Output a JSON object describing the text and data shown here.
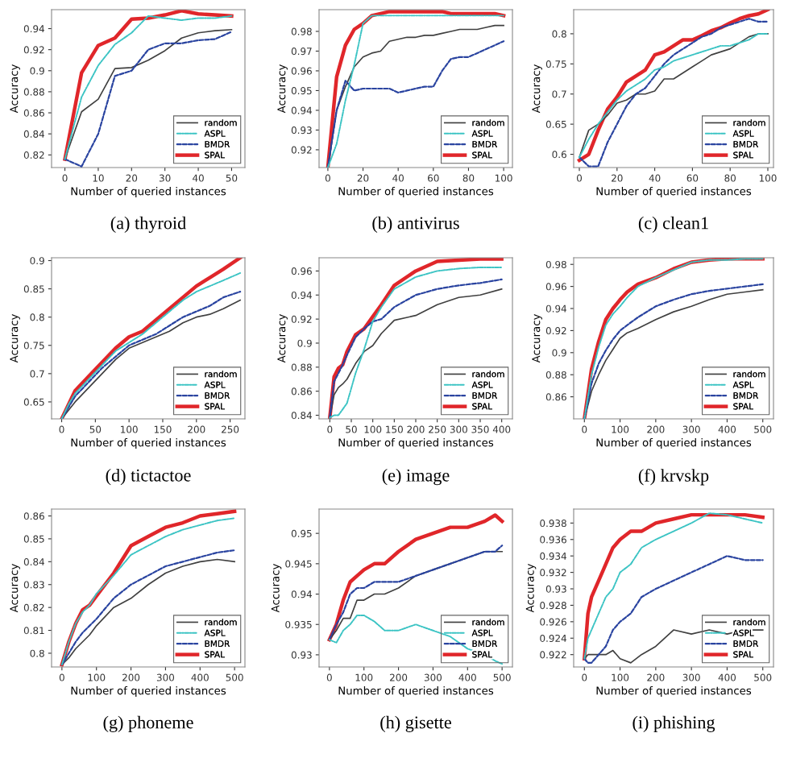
{
  "chart_data": [
    {
      "type": "line",
      "title": "(a) thyroid",
      "xlabel": "Number of queried instances",
      "ylabel": "Accuracy",
      "xlim": [
        -4,
        54
      ],
      "xticks": [
        0,
        10,
        20,
        30,
        40,
        50
      ],
      "ylim": [
        0.808,
        0.958
      ],
      "yticks": [
        0.82,
        0.84,
        0.86,
        0.88,
        0.9,
        0.92,
        0.94
      ],
      "legend": "bottom right",
      "series": [
        {
          "name": "random",
          "color": "#404040",
          "line_style": "solid",
          "x": [
            0,
            5,
            10,
            15,
            20,
            25,
            30,
            35,
            40,
            45,
            50
          ],
          "values": [
            0.816,
            0.861,
            0.873,
            0.902,
            0.903,
            0.91,
            0.919,
            0.931,
            0.936,
            0.938,
            0.939
          ]
        },
        {
          "name": "ASPL",
          "color": "#3cc4c4",
          "line_style": "dashdot",
          "x": [
            0,
            5,
            10,
            15,
            20,
            25,
            30,
            35,
            40,
            45,
            50
          ],
          "values": [
            0.816,
            0.875,
            0.905,
            0.925,
            0.936,
            0.952,
            0.95,
            0.948,
            0.95,
            0.95,
            0.952
          ]
        },
        {
          "name": "BMDR",
          "color": "#2a44a0",
          "line_style": "dashed",
          "x": [
            0,
            5,
            10,
            15,
            20,
            25,
            30,
            35,
            40,
            45,
            50
          ],
          "values": [
            0.816,
            0.809,
            0.84,
            0.895,
            0.9,
            0.92,
            0.926,
            0.926,
            0.929,
            0.93,
            0.937
          ]
        },
        {
          "name": "SPAL",
          "color": "#e0262a",
          "line_style": "solid",
          "x": [
            0,
            5,
            10,
            15,
            20,
            25,
            30,
            35,
            40,
            45,
            50
          ],
          "values": [
            0.816,
            0.898,
            0.924,
            0.931,
            0.949,
            0.95,
            0.953,
            0.957,
            0.954,
            0.953,
            0.952
          ]
        }
      ]
    },
    {
      "type": "line",
      "title": "(b) antivirus",
      "xlabel": "Number of queried instances",
      "ylabel": "Accuracy",
      "xlim": [
        -5,
        105
      ],
      "xticks": [
        0,
        20,
        40,
        60,
        80,
        100
      ],
      "ylim": [
        0.911,
        0.991
      ],
      "yticks": [
        0.92,
        0.93,
        0.94,
        0.95,
        0.96,
        0.97,
        0.98
      ],
      "legend": "bottom right",
      "series": [
        {
          "name": "random",
          "color": "#404040",
          "line_style": "solid",
          "x": [
            0,
            5,
            10,
            15,
            20,
            25,
            30,
            35,
            40,
            45,
            50,
            55,
            60,
            65,
            70,
            75,
            80,
            85,
            90,
            95,
            100
          ],
          "values": [
            0.911,
            0.94,
            0.952,
            0.962,
            0.967,
            0.969,
            0.97,
            0.975,
            0.976,
            0.977,
            0.977,
            0.978,
            0.978,
            0.979,
            0.98,
            0.981,
            0.981,
            0.981,
            0.982,
            0.983,
            0.983
          ]
        },
        {
          "name": "ASPL",
          "color": "#3cc4c4",
          "line_style": "dashdot",
          "x": [
            0,
            5,
            10,
            15,
            20,
            25,
            30,
            35,
            40,
            45,
            50,
            55,
            60,
            65,
            70,
            75,
            80,
            85,
            90,
            95,
            100
          ],
          "values": [
            0.911,
            0.923,
            0.945,
            0.963,
            0.984,
            0.988,
            0.988,
            0.988,
            0.988,
            0.988,
            0.988,
            0.988,
            0.988,
            0.988,
            0.988,
            0.988,
            0.988,
            0.988,
            0.988,
            0.988,
            0.988
          ]
        },
        {
          "name": "BMDR",
          "color": "#2a44a0",
          "line_style": "dashed",
          "x": [
            0,
            5,
            10,
            15,
            20,
            25,
            30,
            35,
            40,
            45,
            50,
            55,
            60,
            65,
            70,
            75,
            80,
            85,
            90,
            95,
            100
          ],
          "values": [
            0.911,
            0.94,
            0.955,
            0.95,
            0.951,
            0.951,
            0.951,
            0.951,
            0.949,
            0.95,
            0.951,
            0.952,
            0.952,
            0.96,
            0.966,
            0.967,
            0.967,
            0.969,
            0.971,
            0.973,
            0.975
          ]
        },
        {
          "name": "SPAL",
          "color": "#e0262a",
          "line_style": "solid",
          "x": [
            0,
            5,
            10,
            15,
            20,
            25,
            30,
            35,
            40,
            45,
            50,
            55,
            60,
            65,
            70,
            75,
            80,
            85,
            90,
            95,
            100
          ],
          "values": [
            0.911,
            0.957,
            0.973,
            0.981,
            0.984,
            0.988,
            0.989,
            0.99,
            0.99,
            0.99,
            0.99,
            0.99,
            0.99,
            0.99,
            0.989,
            0.989,
            0.989,
            0.989,
            0.989,
            0.989,
            0.988
          ]
        }
      ]
    },
    {
      "type": "line",
      "title": "(c) clean1",
      "xlabel": "Number of queried instances",
      "ylabel": "Accuracy",
      "xlim": [
        -3,
        103
      ],
      "xticks": [
        0,
        20,
        40,
        60,
        80,
        100
      ],
      "ylim": [
        0.578,
        0.84
      ],
      "yticks": [
        0.6,
        0.65,
        0.7,
        0.75,
        0.8
      ],
      "legend": "bottom right",
      "series": [
        {
          "name": "random",
          "color": "#404040",
          "line_style": "solid",
          "x": [
            0,
            5,
            10,
            15,
            20,
            25,
            30,
            35,
            40,
            45,
            50,
            55,
            60,
            65,
            70,
            75,
            80,
            85,
            90,
            95,
            100
          ],
          "values": [
            0.595,
            0.64,
            0.65,
            0.665,
            0.685,
            0.69,
            0.7,
            0.7,
            0.705,
            0.725,
            0.725,
            0.735,
            0.745,
            0.755,
            0.765,
            0.77,
            0.775,
            0.785,
            0.795,
            0.8,
            0.8
          ]
        },
        {
          "name": "ASPL",
          "color": "#3cc4c4",
          "line_style": "dashdot",
          "x": [
            0,
            5,
            10,
            15,
            20,
            25,
            30,
            35,
            40,
            45,
            50,
            55,
            60,
            65,
            70,
            75,
            80,
            85,
            90,
            95,
            100
          ],
          "values": [
            0.595,
            0.625,
            0.65,
            0.67,
            0.69,
            0.705,
            0.715,
            0.725,
            0.74,
            0.745,
            0.755,
            0.76,
            0.765,
            0.77,
            0.775,
            0.78,
            0.78,
            0.785,
            0.79,
            0.8,
            0.8
          ]
        },
        {
          "name": "BMDR",
          "color": "#2a44a0",
          "line_style": "dashed",
          "x": [
            0,
            5,
            10,
            15,
            20,
            25,
            30,
            35,
            40,
            45,
            50,
            55,
            60,
            65,
            70,
            75,
            80,
            85,
            90,
            95,
            100
          ],
          "values": [
            0.595,
            0.58,
            0.58,
            0.62,
            0.65,
            0.68,
            0.7,
            0.71,
            0.73,
            0.75,
            0.765,
            0.775,
            0.785,
            0.795,
            0.8,
            0.81,
            0.815,
            0.82,
            0.825,
            0.82,
            0.82
          ]
        },
        {
          "name": "SPAL",
          "color": "#e0262a",
          "line_style": "solid",
          "x": [
            0,
            5,
            10,
            15,
            20,
            25,
            30,
            35,
            40,
            45,
            50,
            55,
            60,
            65,
            70,
            75,
            80,
            85,
            90,
            95,
            100
          ],
          "values": [
            0.59,
            0.6,
            0.64,
            0.675,
            0.695,
            0.72,
            0.73,
            0.74,
            0.765,
            0.77,
            0.78,
            0.79,
            0.79,
            0.797,
            0.805,
            0.81,
            0.818,
            0.825,
            0.83,
            0.833,
            0.84
          ]
        }
      ]
    },
    {
      "type": "line",
      "title": "(d) tictactoe",
      "xlabel": "Number of queried instances",
      "ylabel": "Accuracy",
      "xlim": [
        -15,
        272
      ],
      "xticks": [
        0,
        50,
        100,
        150,
        200,
        250
      ],
      "ylim": [
        0.62,
        0.905
      ],
      "yticks": [
        0.65,
        0.7,
        0.75,
        0.8,
        0.85,
        0.9
      ],
      "legend": "bottom right",
      "series": [
        {
          "name": "random",
          "color": "#404040",
          "line_style": "solid",
          "x": [
            0,
            10,
            20,
            40,
            60,
            80,
            100,
            120,
            140,
            160,
            180,
            200,
            220,
            240,
            265
          ],
          "values": [
            0.62,
            0.635,
            0.65,
            0.675,
            0.7,
            0.725,
            0.745,
            0.755,
            0.765,
            0.775,
            0.79,
            0.8,
            0.805,
            0.815,
            0.83
          ]
        },
        {
          "name": "ASPL",
          "color": "#3cc4c4",
          "line_style": "dashdot",
          "x": [
            0,
            10,
            20,
            40,
            60,
            80,
            100,
            120,
            140,
            160,
            180,
            200,
            220,
            240,
            265
          ],
          "values": [
            0.62,
            0.645,
            0.665,
            0.69,
            0.715,
            0.74,
            0.755,
            0.77,
            0.79,
            0.81,
            0.83,
            0.845,
            0.855,
            0.865,
            0.878
          ]
        },
        {
          "name": "BMDR",
          "color": "#2a44a0",
          "line_style": "dashed",
          "x": [
            0,
            10,
            20,
            40,
            60,
            80,
            100,
            120,
            140,
            160,
            180,
            200,
            220,
            240,
            265
          ],
          "values": [
            0.62,
            0.64,
            0.66,
            0.685,
            0.71,
            0.73,
            0.75,
            0.76,
            0.77,
            0.785,
            0.8,
            0.81,
            0.82,
            0.835,
            0.845
          ]
        },
        {
          "name": "SPAL",
          "color": "#e0262a",
          "line_style": "solid",
          "x": [
            0,
            10,
            20,
            40,
            60,
            80,
            100,
            120,
            140,
            160,
            180,
            200,
            220,
            240,
            265
          ],
          "values": [
            0.62,
            0.645,
            0.67,
            0.695,
            0.72,
            0.745,
            0.765,
            0.775,
            0.795,
            0.815,
            0.835,
            0.855,
            0.87,
            0.885,
            0.905
          ]
        }
      ]
    },
    {
      "type": "line",
      "title": "(e) image",
      "xlabel": "Number of queried instances",
      "ylabel": "Accuracy",
      "xlim": [
        -25,
        425
      ],
      "xticks": [
        0,
        50,
        100,
        150,
        200,
        250,
        300,
        350,
        400
      ],
      "ylim": [
        0.837,
        0.971
      ],
      "yticks": [
        0.84,
        0.86,
        0.88,
        0.9,
        0.92,
        0.94,
        0.96
      ],
      "legend": "bottom right",
      "series": [
        {
          "name": "random",
          "color": "#404040",
          "line_style": "solid",
          "x": [
            0,
            10,
            20,
            30,
            40,
            60,
            80,
            100,
            120,
            150,
            200,
            250,
            300,
            350,
            400
          ],
          "values": [
            0.838,
            0.857,
            0.863,
            0.866,
            0.87,
            0.883,
            0.893,
            0.898,
            0.908,
            0.919,
            0.923,
            0.932,
            0.938,
            0.94,
            0.945
          ]
        },
        {
          "name": "ASPL",
          "color": "#3cc4c4",
          "line_style": "dashdot",
          "x": [
            0,
            10,
            20,
            30,
            40,
            60,
            80,
            100,
            120,
            150,
            200,
            250,
            300,
            350,
            400
          ],
          "values": [
            0.838,
            0.84,
            0.84,
            0.845,
            0.85,
            0.875,
            0.895,
            0.918,
            0.93,
            0.945,
            0.955,
            0.96,
            0.962,
            0.963,
            0.963
          ]
        },
        {
          "name": "BMDR",
          "color": "#2a44a0",
          "line_style": "dashed",
          "x": [
            0,
            10,
            20,
            30,
            40,
            60,
            80,
            100,
            120,
            150,
            200,
            250,
            300,
            350,
            400
          ],
          "values": [
            0.838,
            0.868,
            0.875,
            0.882,
            0.89,
            0.905,
            0.912,
            0.918,
            0.92,
            0.93,
            0.94,
            0.945,
            0.948,
            0.95,
            0.953
          ]
        },
        {
          "name": "SPAL",
          "color": "#e0262a",
          "line_style": "solid",
          "x": [
            0,
            10,
            20,
            30,
            40,
            60,
            80,
            100,
            120,
            150,
            200,
            250,
            300,
            350,
            400
          ],
          "values": [
            0.838,
            0.872,
            0.879,
            0.882,
            0.893,
            0.907,
            0.912,
            0.922,
            0.932,
            0.948,
            0.96,
            0.968,
            0.969,
            0.97,
            0.97
          ]
        }
      ]
    },
    {
      "type": "line",
      "title": "(f) krvskp",
      "xlabel": "Number of queried instances",
      "ylabel": "Accuracy",
      "xlim": [
        -30,
        530
      ],
      "xticks": [
        0,
        100,
        200,
        300,
        400,
        500
      ],
      "ylim": [
        0.84,
        0.986
      ],
      "yticks": [
        0.86,
        0.88,
        0.9,
        0.92,
        0.94,
        0.96,
        0.98
      ],
      "legend": "bottom right",
      "series": [
        {
          "name": "random",
          "color": "#404040",
          "line_style": "solid",
          "x": [
            0,
            20,
            40,
            60,
            80,
            100,
            120,
            150,
            200,
            250,
            300,
            350,
            400,
            450,
            500
          ],
          "values": [
            0.84,
            0.865,
            0.88,
            0.893,
            0.903,
            0.913,
            0.918,
            0.922,
            0.93,
            0.937,
            0.942,
            0.948,
            0.953,
            0.955,
            0.957
          ]
        },
        {
          "name": "ASPL",
          "color": "#3cc4c4",
          "line_style": "dashdot",
          "x": [
            0,
            20,
            40,
            60,
            80,
            100,
            120,
            150,
            200,
            250,
            300,
            350,
            400,
            450,
            500
          ],
          "values": [
            0.84,
            0.88,
            0.905,
            0.925,
            0.935,
            0.942,
            0.95,
            0.96,
            0.968,
            0.975,
            0.982,
            0.984,
            0.984,
            0.985,
            0.985
          ]
        },
        {
          "name": "BMDR",
          "color": "#2a44a0",
          "line_style": "dashed",
          "x": [
            0,
            20,
            40,
            60,
            80,
            100,
            120,
            150,
            200,
            250,
            300,
            350,
            400,
            450,
            500
          ],
          "values": [
            0.84,
            0.872,
            0.89,
            0.902,
            0.912,
            0.92,
            0.925,
            0.932,
            0.942,
            0.948,
            0.953,
            0.956,
            0.958,
            0.96,
            0.962
          ]
        },
        {
          "name": "SPAL",
          "color": "#e0262a",
          "line_style": "solid",
          "x": [
            0,
            20,
            40,
            60,
            80,
            100,
            120,
            150,
            200,
            250,
            300,
            350,
            400,
            450,
            500
          ],
          "values": [
            0.84,
            0.885,
            0.91,
            0.93,
            0.94,
            0.948,
            0.955,
            0.962,
            0.968,
            0.976,
            0.982,
            0.984,
            0.985,
            0.985,
            0.985
          ]
        }
      ]
    },
    {
      "type": "line",
      "title": "(g) phoneme",
      "xlabel": "Number of queried instances",
      "ylabel": "Accuracy",
      "xlim": [
        -30,
        530
      ],
      "xticks": [
        0,
        100,
        200,
        300,
        400,
        500
      ],
      "ylim": [
        0.794,
        0.863
      ],
      "yticks": [
        0.8,
        0.81,
        0.82,
        0.83,
        0.84,
        0.85,
        0.86
      ],
      "legend": "bottom right",
      "series": [
        {
          "name": "random",
          "color": "#404040",
          "line_style": "solid",
          "x": [
            0,
            20,
            40,
            60,
            80,
            100,
            150,
            200,
            250,
            300,
            350,
            400,
            450,
            500
          ],
          "values": [
            0.795,
            0.798,
            0.802,
            0.805,
            0.808,
            0.812,
            0.82,
            0.824,
            0.83,
            0.835,
            0.838,
            0.84,
            0.841,
            0.84
          ]
        },
        {
          "name": "ASPL",
          "color": "#3cc4c4",
          "line_style": "dashdot",
          "x": [
            0,
            20,
            40,
            60,
            80,
            100,
            150,
            200,
            250,
            300,
            350,
            400,
            450,
            500
          ],
          "values": [
            0.795,
            0.805,
            0.813,
            0.818,
            0.821,
            0.826,
            0.834,
            0.843,
            0.847,
            0.851,
            0.854,
            0.856,
            0.858,
            0.859
          ]
        },
        {
          "name": "BMDR",
          "color": "#2a44a0",
          "line_style": "dashed",
          "x": [
            0,
            20,
            40,
            60,
            80,
            100,
            150,
            200,
            250,
            300,
            350,
            400,
            450,
            500
          ],
          "values": [
            0.795,
            0.8,
            0.805,
            0.809,
            0.812,
            0.815,
            0.824,
            0.83,
            0.834,
            0.838,
            0.84,
            0.842,
            0.844,
            0.845
          ]
        },
        {
          "name": "SPAL",
          "color": "#e0262a",
          "line_style": "solid",
          "x": [
            0,
            20,
            40,
            60,
            80,
            100,
            150,
            200,
            250,
            300,
            350,
            400,
            450,
            500
          ],
          "values": [
            0.795,
            0.805,
            0.813,
            0.819,
            0.821,
            0.825,
            0.835,
            0.847,
            0.851,
            0.855,
            0.857,
            0.86,
            0.861,
            0.862
          ]
        }
      ]
    },
    {
      "type": "line",
      "title": "(h) gisette",
      "xlabel": "Number of queried instances",
      "ylabel": "Accuracy",
      "xlim": [
        -30,
        530
      ],
      "xticks": [
        0,
        100,
        200,
        300,
        400,
        500
      ],
      "ylim": [
        0.928,
        0.954
      ],
      "yticks": [
        0.93,
        0.935,
        0.94,
        0.945,
        0.95
      ],
      "legend": "bottom right",
      "series": [
        {
          "name": "random",
          "color": "#404040",
          "line_style": "solid",
          "x": [
            0,
            20,
            40,
            60,
            80,
            100,
            130,
            160,
            200,
            250,
            300,
            350,
            400,
            450,
            480,
            500
          ],
          "values": [
            0.9325,
            0.934,
            0.936,
            0.936,
            0.939,
            0.939,
            0.94,
            0.94,
            0.941,
            0.943,
            0.944,
            0.945,
            0.946,
            0.947,
            0.947,
            0.947
          ]
        },
        {
          "name": "ASPL",
          "color": "#3cc4c4",
          "line_style": "dashdot",
          "x": [
            0,
            20,
            40,
            60,
            80,
            100,
            130,
            160,
            200,
            250,
            300,
            350,
            400,
            450,
            480,
            500
          ],
          "values": [
            0.9325,
            0.932,
            0.934,
            0.935,
            0.9365,
            0.9365,
            0.9355,
            0.934,
            0.934,
            0.935,
            0.934,
            0.933,
            0.931,
            0.93,
            0.929,
            0.9285
          ]
        },
        {
          "name": "BMDR",
          "color": "#2a44a0",
          "line_style": "dashed",
          "x": [
            0,
            20,
            40,
            60,
            80,
            100,
            130,
            160,
            200,
            250,
            300,
            350,
            400,
            450,
            480,
            500
          ],
          "values": [
            0.9325,
            0.935,
            0.937,
            0.94,
            0.941,
            0.941,
            0.942,
            0.942,
            0.942,
            0.943,
            0.944,
            0.945,
            0.946,
            0.947,
            0.947,
            0.948
          ]
        },
        {
          "name": "SPAL",
          "color": "#e0262a",
          "line_style": "solid",
          "x": [
            0,
            20,
            40,
            60,
            80,
            100,
            130,
            160,
            200,
            250,
            300,
            350,
            400,
            450,
            480,
            500
          ],
          "values": [
            0.9325,
            0.935,
            0.939,
            0.942,
            0.943,
            0.944,
            0.945,
            0.945,
            0.947,
            0.949,
            0.95,
            0.951,
            0.951,
            0.952,
            0.953,
            0.952
          ]
        }
      ]
    },
    {
      "type": "line",
      "title": "(i) phishing",
      "xlabel": "Number of queried instances",
      "ylabel": "Accuracy",
      "xlim": [
        -30,
        530
      ],
      "xticks": [
        0,
        100,
        200,
        300,
        400,
        500
      ],
      "ylim": [
        0.9205,
        0.9397
      ],
      "yticks": [
        0.922,
        0.924,
        0.926,
        0.928,
        0.93,
        0.932,
        0.934,
        0.936,
        0.938
      ],
      "legend": "bottom right",
      "series": [
        {
          "name": "random",
          "color": "#404040",
          "line_style": "solid",
          "x": [
            0,
            10,
            20,
            40,
            60,
            80,
            100,
            130,
            160,
            200,
            250,
            300,
            350,
            400,
            450,
            500
          ],
          "values": [
            0.9215,
            0.922,
            0.922,
            0.922,
            0.922,
            0.9225,
            0.9215,
            0.921,
            0.922,
            0.923,
            0.925,
            0.9245,
            0.925,
            0.9245,
            0.925,
            0.925
          ]
        },
        {
          "name": "ASPL",
          "color": "#3cc4c4",
          "line_style": "dashdot",
          "x": [
            0,
            10,
            20,
            40,
            60,
            80,
            100,
            130,
            160,
            200,
            250,
            300,
            350,
            400,
            450,
            500
          ],
          "values": [
            0.9215,
            0.924,
            0.925,
            0.927,
            0.929,
            0.93,
            0.932,
            0.933,
            0.935,
            0.936,
            0.937,
            0.938,
            0.9392,
            0.939,
            0.9385,
            0.938
          ]
        },
        {
          "name": "BMDR",
          "color": "#2a44a0",
          "line_style": "dashed",
          "x": [
            0,
            10,
            20,
            40,
            60,
            80,
            100,
            130,
            160,
            200,
            250,
            300,
            350,
            400,
            450,
            500
          ],
          "values": [
            0.9215,
            0.921,
            0.921,
            0.922,
            0.923,
            0.925,
            0.926,
            0.927,
            0.929,
            0.93,
            0.931,
            0.932,
            0.933,
            0.934,
            0.9335,
            0.9335
          ]
        },
        {
          "name": "SPAL",
          "color": "#e0262a",
          "line_style": "solid",
          "x": [
            0,
            10,
            20,
            40,
            60,
            80,
            100,
            130,
            160,
            200,
            250,
            300,
            350,
            400,
            450,
            500
          ],
          "values": [
            0.9215,
            0.927,
            0.929,
            0.931,
            0.933,
            0.935,
            0.936,
            0.937,
            0.937,
            0.938,
            0.9385,
            0.939,
            0.939,
            0.939,
            0.939,
            0.9387
          ]
        }
      ]
    }
  ]
}
